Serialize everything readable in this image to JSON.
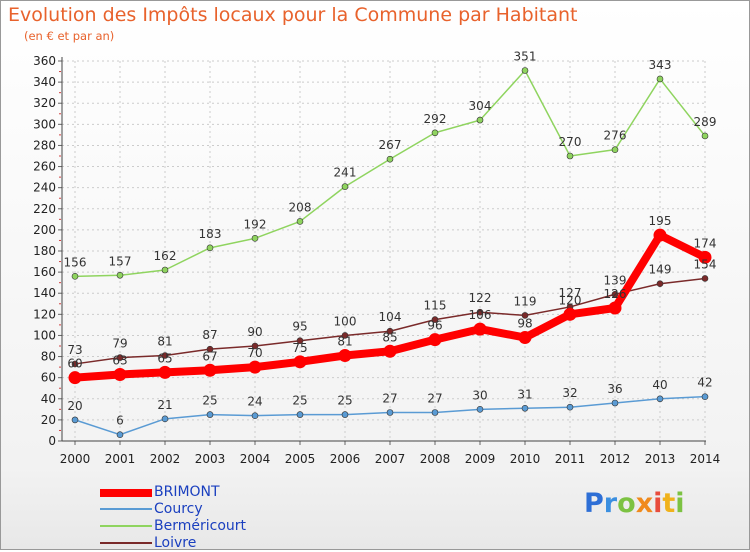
{
  "title": "Evolution des Impôts locaux pour la Commune par Habitant",
  "subtitle": "(en € et par an)",
  "logo": [
    "P",
    "r",
    "o",
    "x",
    "i",
    "t",
    "i"
  ],
  "chart_data": {
    "type": "line",
    "title": "Evolution des Impôts locaux pour la Commune par Habitant",
    "ylabel": "(en € et par an)",
    "xlabel": "",
    "ylim": [
      0,
      360
    ],
    "ytick_step": 20,
    "x": [
      "2000",
      "2001",
      "2002",
      "2003",
      "2004",
      "2005",
      "2006",
      "2007",
      "2008",
      "2009",
      "2010",
      "2011",
      "2012",
      "2013",
      "2014"
    ],
    "series": [
      {
        "name": "BRIMONT",
        "color": "#ff0000",
        "values": [
          60,
          63,
          65,
          67,
          70,
          75,
          81,
          85,
          96,
          106,
          98,
          120,
          126,
          195,
          174
        ]
      },
      {
        "name": "Courcy",
        "color": "#5a9bd4",
        "values": [
          20,
          6,
          21,
          25,
          24,
          25,
          25,
          27,
          27,
          30,
          31,
          32,
          36,
          40,
          42
        ]
      },
      {
        "name": "Berméricourt",
        "color": "#8fd45f",
        "values": [
          156,
          157,
          162,
          183,
          192,
          208,
          241,
          267,
          292,
          304,
          351,
          270,
          276,
          343,
          289
        ]
      },
      {
        "name": "Loivre",
        "color": "#7a2a2a",
        "values": [
          73,
          79,
          81,
          87,
          90,
          95,
          100,
          104,
          115,
          122,
          119,
          127,
          139,
          149,
          154
        ]
      }
    ]
  }
}
